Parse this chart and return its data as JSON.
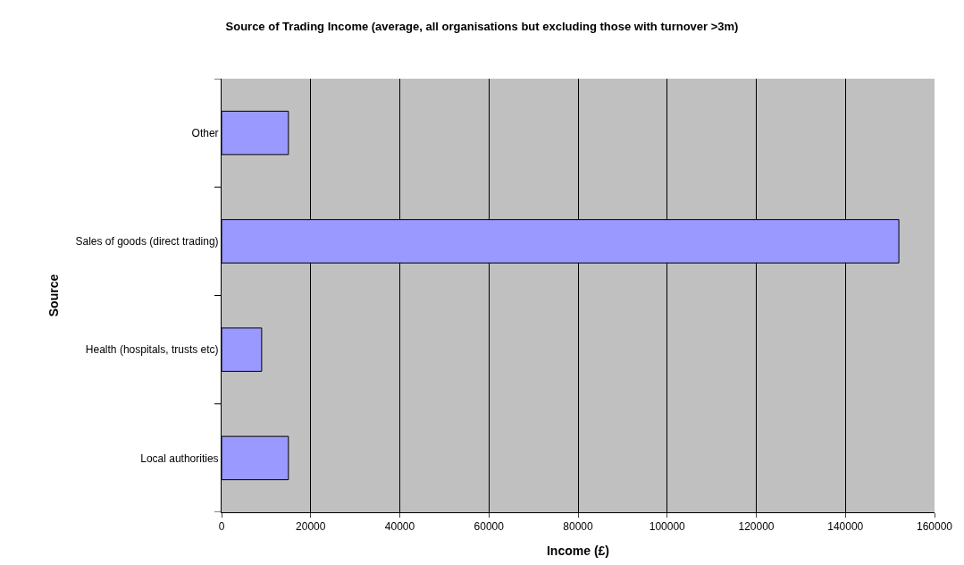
{
  "chart_data": {
    "type": "bar",
    "orientation": "horizontal",
    "title": "Source of Trading Income (average, all organisations but excluding those with turnover >3m)",
    "xlabel": "Income (£)",
    "ylabel": "Source",
    "categories": [
      "Other",
      "Sales of goods (direct trading)",
      "Health (hospitals, trusts etc)",
      "Local authorities"
    ],
    "values": [
      15000,
      152000,
      9000,
      15000
    ],
    "color": "#9999ff",
    "xlim": [
      0,
      160000
    ],
    "xticks": [
      0,
      20000,
      40000,
      60000,
      80000,
      100000,
      120000,
      140000,
      160000
    ],
    "grid": "x"
  }
}
